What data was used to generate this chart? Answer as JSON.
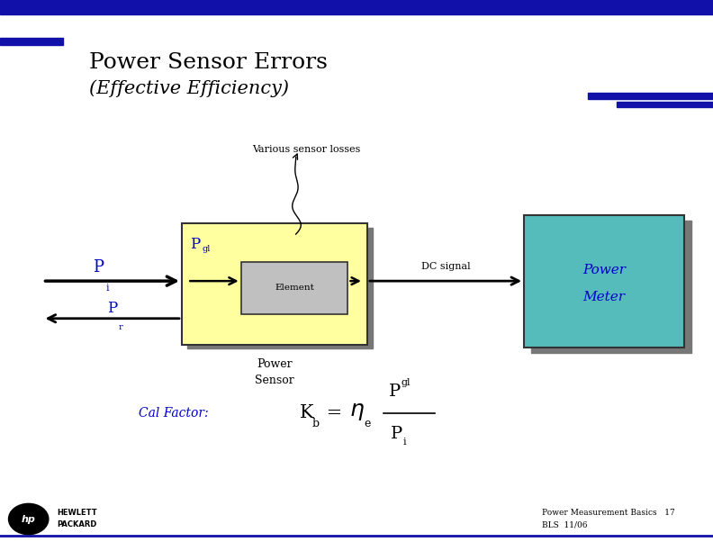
{
  "title1": "Power Sensor Errors",
  "title2": "(Effective Efficiency)",
  "sensor_label": "Various sensor losses",
  "dc_signal_label": "DC signal",
  "power_sensor_label1": "Power",
  "power_sensor_label2": "Sensor",
  "element_label": "Element",
  "power_meter_label1": "Power",
  "power_meter_label2": "Meter",
  "cal_factor_label": "Cal Factor:",
  "footer_left": "Power Measurement Basics   17",
  "footer_right": "BLS  11/06",
  "blue_color": "#0000CC",
  "dark_gray": "#555555",
  "yellow_fill": "#FFFFA0",
  "teal_fill": "#55BBBB",
  "element_fill": "#C0C0C0",
  "shadow_color": "#777777",
  "top_bar_color": "#1111AA",
  "text_color": "#000080",
  "fig_w": 7.92,
  "fig_h": 6.12,
  "dpi": 100
}
